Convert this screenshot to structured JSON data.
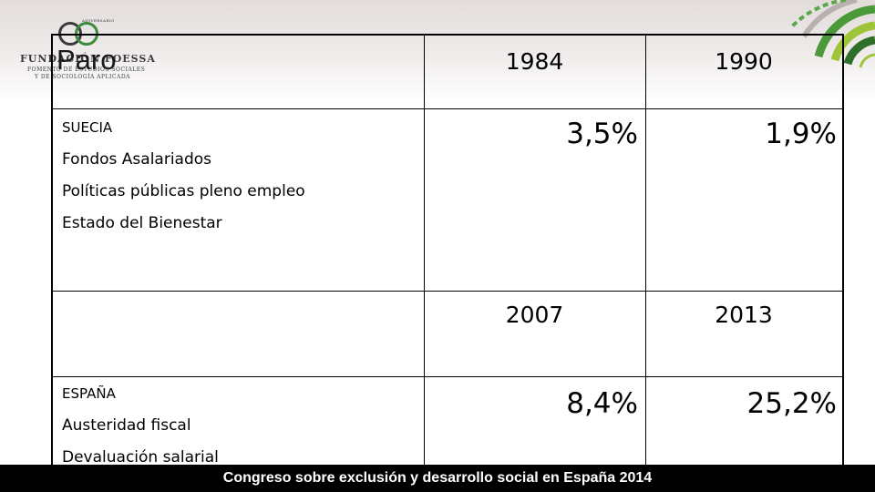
{
  "logo": {
    "anniversary": "ANIVERSARIO",
    "name": "FUNDACIÓN FOESSA",
    "subtitle_line1": "FOMENTO DE ESTUDIOS SOCIALES",
    "subtitle_line2": "Y DE SOCIOLOGÍA APLICADA"
  },
  "slide": {
    "title": "Paro"
  },
  "table": {
    "header_years": [
      "1984",
      "1990"
    ],
    "sweden": {
      "items": [
        "SUECIA",
        "Fondos Asalariados",
        "Políticas públicas pleno empleo",
        "Estado del Bienestar"
      ],
      "values": [
        "3,5%",
        "1,9%"
      ]
    },
    "spain_header_years": [
      "2007",
      "2013"
    ],
    "spain": {
      "items": [
        "ESPAÑA",
        "Austeridad fiscal",
        "Devaluación salarial"
      ],
      "values": [
        "8,4%",
        "25,2%"
      ]
    }
  },
  "footer": {
    "text": "Congreso sobre exclusión y desarrollo social en España 2014"
  },
  "colors": {
    "top_band": "#e2dcdb",
    "table_border": "#000000",
    "footer_bg": "#000000",
    "footer_text": "#ffffff",
    "deco_green": "#4a9a3a",
    "deco_lime": "#9fc43a"
  }
}
